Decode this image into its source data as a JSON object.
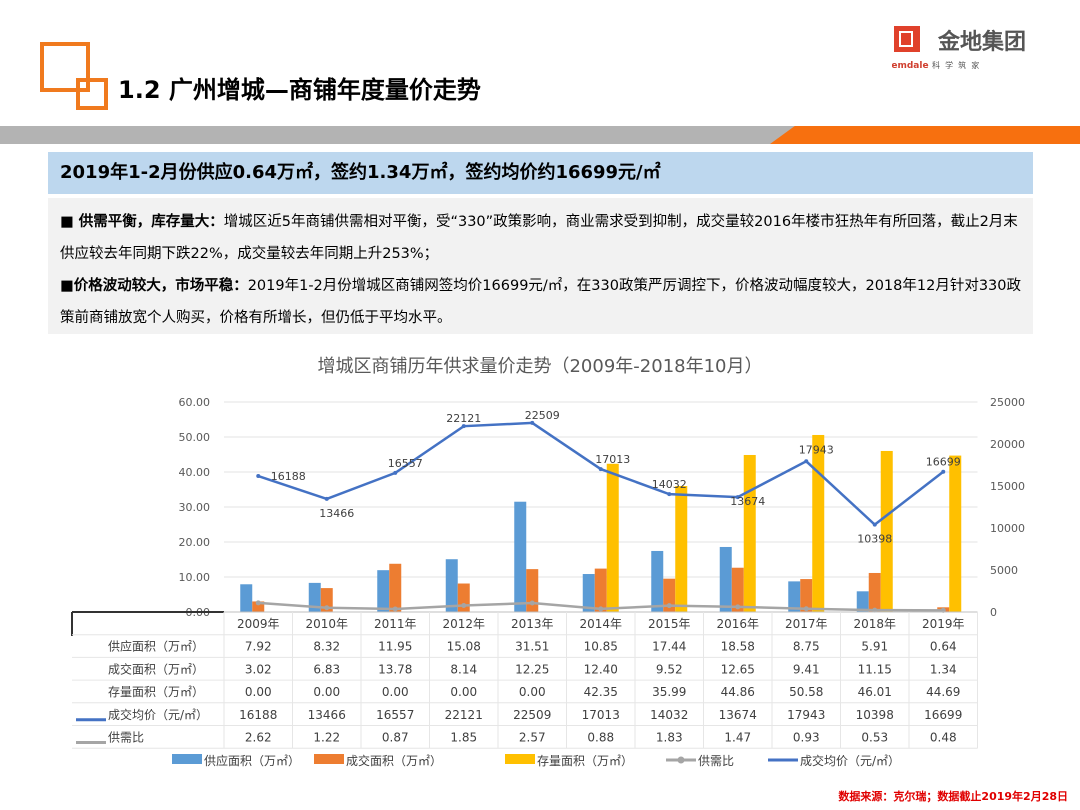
{
  "header": {
    "title": "1.2  广州增城—商铺年度量价走势",
    "brand_name": "金地集团",
    "brand_en": "Gemdale",
    "brand_slogan": "科  学  筑  家"
  },
  "headline": "2019年1-2月份供应0.64万㎡，签约1.34万㎡，签约均价约16699元/㎡",
  "bullets": [
    {
      "lead": "■ 供需平衡，库存量大：",
      "text": "增城区近5年商铺供需相对平衡，受“330”政策影响，商业需求受到抑制，成交量较2016年楼市狂热年有所回落，截止2月末供应较去年同期下跌22%，成交量较去年同期上升253%；"
    },
    {
      "lead": "■价格波动较大，市场平稳：",
      "text": "2019年1-2月份增城区商铺网签均价16699元/㎡，在330政策严厉调控下，价格波动幅度较大，2018年12月针对330政策前商铺放宽个人购买，价格有所增长，但仍低于平均水平。"
    }
  ],
  "chart_data": {
    "type": "bar+line",
    "title": "增城区商铺历年供求量价走势（2009年-2018年10月）",
    "categories": [
      "2009年",
      "2010年",
      "2011年",
      "2012年",
      "2013年",
      "2014年",
      "2015年",
      "2016年",
      "2017年",
      "2018年",
      "2019年"
    ],
    "left_axis": {
      "ylim": [
        0,
        60
      ],
      "ticks": [
        "0.00",
        "10.00",
        "20.00",
        "30.00",
        "40.00",
        "50.00",
        "60.00"
      ]
    },
    "right_axis": {
      "ylim": [
        0,
        25000
      ],
      "ticks": [
        "0",
        "5000",
        "10000",
        "15000",
        "20000",
        "25000"
      ]
    },
    "grid": true,
    "legend_placement": "bottom",
    "series": [
      {
        "name": "供应面积（万㎡）",
        "type": "bar",
        "axis": "left",
        "color": "#5b9bd5",
        "values": [
          7.92,
          8.32,
          11.95,
          15.08,
          31.51,
          10.85,
          17.44,
          18.58,
          8.75,
          5.91,
          0.64
        ],
        "labels": [
          "7.92",
          "8.32",
          "11.95",
          "15.08",
          "31.51",
          "10.85",
          "17.44",
          "18.58",
          "8.75",
          "5.91",
          "0.64"
        ]
      },
      {
        "name": "成交面积（万㎡）",
        "type": "bar",
        "axis": "left",
        "color": "#ed7d31",
        "values": [
          3.02,
          6.83,
          13.78,
          8.14,
          12.25,
          12.4,
          9.52,
          12.65,
          9.41,
          11.15,
          1.34
        ],
        "labels": [
          "3.02",
          "6.83",
          "13.78",
          "8.14",
          "12.25",
          "12.40",
          "9.52",
          "12.65",
          "9.41",
          "11.15",
          "1.34"
        ]
      },
      {
        "name": "存量面积（万㎡）",
        "type": "bar",
        "axis": "left",
        "color": "#ffc000",
        "values": [
          0,
          0,
          0,
          0,
          0,
          42.35,
          35.99,
          44.86,
          50.58,
          46.01,
          44.69
        ],
        "labels": [
          "0.00",
          "0.00",
          "0.00",
          "0.00",
          "0.00",
          "42.35",
          "35.99",
          "44.86",
          "50.58",
          "46.01",
          "44.69"
        ]
      },
      {
        "name": "成交均价（元/㎡）",
        "type": "line",
        "axis": "right",
        "color": "#4472c4",
        "values": [
          16188,
          13466,
          16557,
          22121,
          22509,
          17013,
          14032,
          13674,
          17943,
          10398,
          16699
        ],
        "labels": [
          "16188",
          "13466",
          "16557",
          "22121",
          "22509",
          "17013",
          "14032",
          "13674",
          "17943",
          "10398",
          "16699"
        ]
      },
      {
        "name": "供需比",
        "type": "line",
        "axis": "left",
        "color": "#a5a5a5",
        "values": [
          2.62,
          1.22,
          0.87,
          1.85,
          2.57,
          0.88,
          1.83,
          1.47,
          0.93,
          0.53,
          0.48
        ],
        "labels": [
          "2.62",
          "1.22",
          "0.87",
          "1.85",
          "2.57",
          "0.88",
          "1.83",
          "1.47",
          "0.93",
          "0.53",
          "0.48"
        ]
      }
    ],
    "table_order": [
      0,
      1,
      2,
      3,
      4
    ],
    "legend_order": [
      0,
      1,
      2,
      4,
      3
    ]
  },
  "footer": {
    "source": "数据来源：克尔瑞；数据截止2019年2月28日"
  }
}
